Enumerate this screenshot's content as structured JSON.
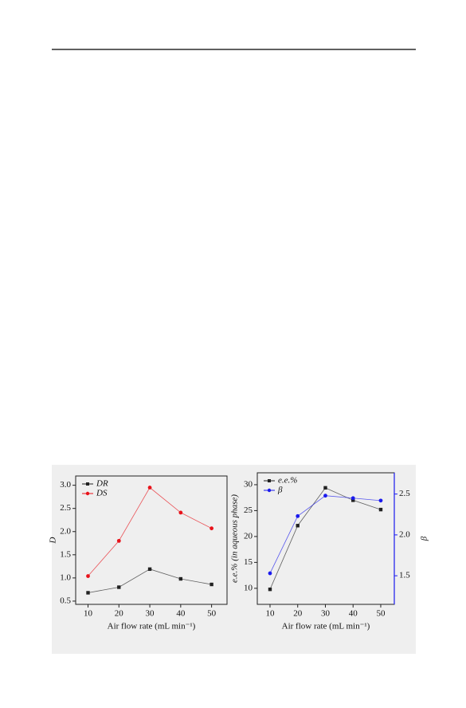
{
  "chart_data": [
    {
      "type": "line",
      "x": [
        10,
        20,
        30,
        40,
        50
      ],
      "series": [
        {
          "name": "DR",
          "color": "#222222",
          "values": [
            0.68,
            0.8,
            1.19,
            0.98,
            0.86
          ]
        },
        {
          "name": "DS",
          "color": "#e8121a",
          "values": [
            1.04,
            1.8,
            2.95,
            2.41,
            2.07
          ]
        }
      ],
      "xlabel": "Air flow rate (mL min⁻¹)",
      "ylabel": "D",
      "xlim": [
        6,
        55
      ],
      "xticks": [
        10,
        20,
        30,
        40,
        50
      ],
      "ylim": [
        0.43,
        3.2
      ],
      "yticks": [
        {
          "value": 0.5,
          "label": "0.5"
        },
        {
          "value": 1,
          "label": "1.0"
        },
        {
          "value": 1.5,
          "label": "1.5"
        },
        {
          "value": 2,
          "label": "2.0"
        },
        {
          "value": 2.5,
          "label": "2.5"
        },
        {
          "value": 3,
          "label": "3.0"
        }
      ]
    },
    {
      "type": "line",
      "x": [
        10,
        20,
        30,
        40,
        50
      ],
      "series": [
        {
          "name": "e.e.%",
          "color": "#222222",
          "values": [
            9.8,
            22.1,
            29.4,
            27.0,
            25.2
          ]
        },
        {
          "name": "β",
          "color": "#1a1aee",
          "axis": "y2",
          "values": [
            1.53,
            2.23,
            2.48,
            2.45,
            2.42
          ]
        }
      ],
      "xlabel": "Air flow rate (mL min⁻¹)",
      "ylabel": "e.e.% (in aqueous phase)",
      "y2label": "β",
      "xlim": [
        5.4,
        54.9
      ],
      "xticks": [
        10,
        20,
        30,
        40,
        50
      ],
      "ylim": [
        6.9,
        32.3
      ],
      "yticks": [
        10,
        15,
        20,
        25,
        30
      ],
      "y2lim": [
        1.15,
        2.76
      ],
      "y2ticks": [
        {
          "value": 1.5,
          "label": "1.5"
        },
        {
          "value": 2,
          "label": "2.0"
        },
        {
          "value": 2.5,
          "label": "2.5"
        }
      ]
    }
  ]
}
